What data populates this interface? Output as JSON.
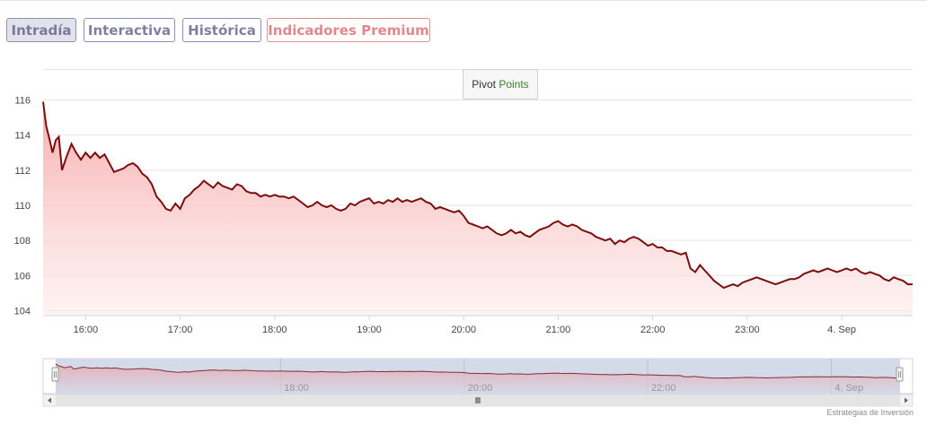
{
  "tabs": [
    {
      "label": "Intradía",
      "active": true
    },
    {
      "label": "Interactiva",
      "active": false
    },
    {
      "label": "Histórica",
      "active": false
    },
    {
      "label": "Indicadores Premium",
      "active": false
    }
  ],
  "pivot_button": {
    "word1": "Pivot",
    "word2": "Points"
  },
  "credit": "Estrategias de Inversión",
  "colors": {
    "line": "#7b0d0d",
    "fill_top": "#f7a9a9",
    "navigator_fill": "#d3dbea",
    "tab_border": "#8f8fb3",
    "premium": "#e38f91"
  },
  "chart_data": {
    "type": "area",
    "x_unit": "time (HH:MM)",
    "x_ticks": [
      "16:00",
      "17:00",
      "18:00",
      "19:00",
      "20:00",
      "21:00",
      "22:00",
      "23:00",
      "4. Sep"
    ],
    "y_ticks": [
      104,
      106,
      108,
      110,
      112,
      114,
      116
    ],
    "ylim": [
      104,
      116.5
    ],
    "xlim": [
      "15:33",
      "24:45"
    ],
    "grid": true,
    "navigator_ticks": [
      "18:00",
      "20:00",
      "22:00",
      "4. Sep"
    ],
    "points": [
      [
        "15:33",
        115.9
      ],
      [
        "15:35",
        114.5
      ],
      [
        "15:37",
        113.8
      ],
      [
        "15:39",
        113.0
      ],
      [
        "15:41",
        113.7
      ],
      [
        "15:43",
        113.9
      ],
      [
        "15:45",
        112.0
      ],
      [
        "15:48",
        112.8
      ],
      [
        "15:51",
        113.5
      ],
      [
        "15:54",
        113.0
      ],
      [
        "15:57",
        112.6
      ],
      [
        "16:00",
        113.0
      ],
      [
        "16:03",
        112.7
      ],
      [
        "16:06",
        113.0
      ],
      [
        "16:09",
        112.7
      ],
      [
        "16:12",
        112.9
      ],
      [
        "16:15",
        112.4
      ],
      [
        "16:18",
        111.9
      ],
      [
        "16:21",
        112.0
      ],
      [
        "16:24",
        112.1
      ],
      [
        "16:27",
        112.3
      ],
      [
        "16:30",
        112.4
      ],
      [
        "16:33",
        112.2
      ],
      [
        "16:36",
        111.8
      ],
      [
        "16:39",
        111.6
      ],
      [
        "16:42",
        111.2
      ],
      [
        "16:45",
        110.5
      ],
      [
        "16:48",
        110.2
      ],
      [
        "16:51",
        109.8
      ],
      [
        "16:54",
        109.7
      ],
      [
        "16:57",
        110.1
      ],
      [
        "17:00",
        109.8
      ],
      [
        "17:03",
        110.4
      ],
      [
        "17:06",
        110.6
      ],
      [
        "17:09",
        110.9
      ],
      [
        "17:12",
        111.1
      ],
      [
        "17:15",
        111.4
      ],
      [
        "17:18",
        111.2
      ],
      [
        "17:21",
        111.0
      ],
      [
        "17:24",
        111.3
      ],
      [
        "17:27",
        111.1
      ],
      [
        "17:30",
        111.0
      ],
      [
        "17:33",
        110.9
      ],
      [
        "17:36",
        111.2
      ],
      [
        "17:39",
        111.1
      ],
      [
        "17:42",
        110.8
      ],
      [
        "17:45",
        110.7
      ],
      [
        "17:48",
        110.7
      ],
      [
        "17:51",
        110.5
      ],
      [
        "17:54",
        110.6
      ],
      [
        "17:57",
        110.5
      ],
      [
        "18:00",
        110.6
      ],
      [
        "18:03",
        110.5
      ],
      [
        "18:06",
        110.5
      ],
      [
        "18:09",
        110.4
      ],
      [
        "18:12",
        110.5
      ],
      [
        "18:15",
        110.3
      ],
      [
        "18:18",
        110.1
      ],
      [
        "18:21",
        109.9
      ],
      [
        "18:24",
        110.0
      ],
      [
        "18:27",
        110.2
      ],
      [
        "18:30",
        110.0
      ],
      [
        "18:33",
        109.9
      ],
      [
        "18:36",
        110.0
      ],
      [
        "18:39",
        109.8
      ],
      [
        "18:42",
        109.7
      ],
      [
        "18:45",
        109.8
      ],
      [
        "18:48",
        110.1
      ],
      [
        "18:51",
        110.0
      ],
      [
        "18:54",
        110.2
      ],
      [
        "18:57",
        110.3
      ],
      [
        "19:00",
        110.4
      ],
      [
        "19:03",
        110.1
      ],
      [
        "19:06",
        110.2
      ],
      [
        "19:09",
        110.1
      ],
      [
        "19:12",
        110.3
      ],
      [
        "19:15",
        110.2
      ],
      [
        "19:18",
        110.4
      ],
      [
        "19:21",
        110.2
      ],
      [
        "19:24",
        110.3
      ],
      [
        "19:27",
        110.2
      ],
      [
        "19:30",
        110.3
      ],
      [
        "19:33",
        110.4
      ],
      [
        "19:36",
        110.2
      ],
      [
        "19:39",
        110.1
      ],
      [
        "19:42",
        109.8
      ],
      [
        "19:45",
        109.9
      ],
      [
        "19:48",
        109.8
      ],
      [
        "19:51",
        109.7
      ],
      [
        "19:54",
        109.6
      ],
      [
        "19:57",
        109.7
      ],
      [
        "20:00",
        109.4
      ],
      [
        "20:03",
        109.0
      ],
      [
        "20:06",
        108.9
      ],
      [
        "20:09",
        108.8
      ],
      [
        "20:12",
        108.7
      ],
      [
        "20:15",
        108.8
      ],
      [
        "20:18",
        108.6
      ],
      [
        "20:21",
        108.4
      ],
      [
        "20:24",
        108.3
      ],
      [
        "20:27",
        108.4
      ],
      [
        "20:30",
        108.6
      ],
      [
        "20:33",
        108.4
      ],
      [
        "20:36",
        108.5
      ],
      [
        "20:39",
        108.3
      ],
      [
        "20:42",
        108.2
      ],
      [
        "20:45",
        108.4
      ],
      [
        "20:48",
        108.6
      ],
      [
        "20:51",
        108.7
      ],
      [
        "20:54",
        108.8
      ],
      [
        "20:57",
        109.0
      ],
      [
        "21:00",
        109.1
      ],
      [
        "21:03",
        108.9
      ],
      [
        "21:06",
        108.8
      ],
      [
        "21:09",
        108.9
      ],
      [
        "21:12",
        108.8
      ],
      [
        "21:15",
        108.6
      ],
      [
        "21:18",
        108.5
      ],
      [
        "21:21",
        108.4
      ],
      [
        "21:24",
        108.2
      ],
      [
        "21:27",
        108.1
      ],
      [
        "21:30",
        108.0
      ],
      [
        "21:33",
        108.1
      ],
      [
        "21:36",
        107.8
      ],
      [
        "21:39",
        108.0
      ],
      [
        "21:42",
        107.9
      ],
      [
        "21:45",
        108.1
      ],
      [
        "21:48",
        108.2
      ],
      [
        "21:51",
        108.1
      ],
      [
        "21:54",
        107.9
      ],
      [
        "21:57",
        107.7
      ],
      [
        "22:00",
        107.8
      ],
      [
        "22:03",
        107.6
      ],
      [
        "22:06",
        107.6
      ],
      [
        "22:09",
        107.4
      ],
      [
        "22:12",
        107.4
      ],
      [
        "22:15",
        107.3
      ],
      [
        "22:18",
        107.2
      ],
      [
        "22:21",
        107.3
      ],
      [
        "22:24",
        106.4
      ],
      [
        "22:27",
        106.2
      ],
      [
        "22:30",
        106.6
      ],
      [
        "22:33",
        106.3
      ],
      [
        "22:36",
        106.0
      ],
      [
        "22:39",
        105.7
      ],
      [
        "22:42",
        105.5
      ],
      [
        "22:45",
        105.3
      ],
      [
        "22:48",
        105.4
      ],
      [
        "22:51",
        105.5
      ],
      [
        "22:54",
        105.4
      ],
      [
        "22:57",
        105.6
      ],
      [
        "23:00",
        105.7
      ],
      [
        "23:03",
        105.8
      ],
      [
        "23:06",
        105.9
      ],
      [
        "23:09",
        105.8
      ],
      [
        "23:12",
        105.7
      ],
      [
        "23:15",
        105.6
      ],
      [
        "23:18",
        105.5
      ],
      [
        "23:21",
        105.6
      ],
      [
        "23:24",
        105.7
      ],
      [
        "23:27",
        105.8
      ],
      [
        "23:30",
        105.8
      ],
      [
        "23:33",
        105.9
      ],
      [
        "23:36",
        106.1
      ],
      [
        "23:39",
        106.2
      ],
      [
        "23:42",
        106.3
      ],
      [
        "23:45",
        106.2
      ],
      [
        "23:48",
        106.3
      ],
      [
        "23:51",
        106.4
      ],
      [
        "23:54",
        106.3
      ],
      [
        "23:57",
        106.2
      ],
      [
        "24:00",
        106.3
      ],
      [
        "24:03",
        106.4
      ],
      [
        "24:06",
        106.3
      ],
      [
        "24:09",
        106.4
      ],
      [
        "24:12",
        106.2
      ],
      [
        "24:15",
        106.1
      ],
      [
        "24:18",
        106.2
      ],
      [
        "24:21",
        106.1
      ],
      [
        "24:24",
        106.0
      ],
      [
        "24:27",
        105.8
      ],
      [
        "24:30",
        105.7
      ],
      [
        "24:33",
        105.9
      ],
      [
        "24:36",
        105.8
      ],
      [
        "24:39",
        105.7
      ],
      [
        "24:42",
        105.5
      ],
      [
        "24:45",
        105.5
      ]
    ]
  }
}
